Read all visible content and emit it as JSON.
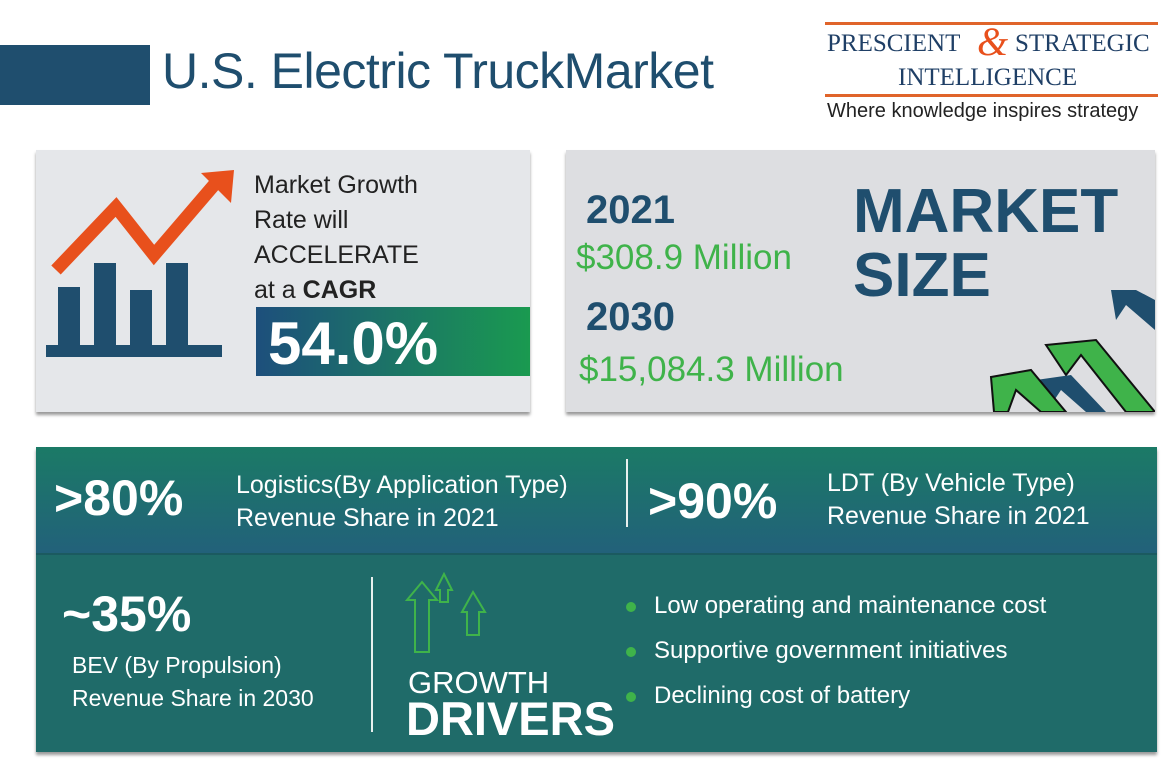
{
  "header": {
    "title": "U.S. Electric TruckMarket"
  },
  "logo": {
    "line1_left": "PRESCIENT",
    "ampersand": "&",
    "line1_right": "STRATEGIC",
    "line2": "INTELLIGENCE",
    "tagline": "Where knowledge inspires strategy"
  },
  "growth_card": {
    "line1": "Market Growth",
    "line2": "Rate will",
    "line3": "ACCELERATE",
    "line4_prefix": "at a ",
    "line4_bold": "CAGR",
    "cagr": "54.0%"
  },
  "market_size_card": {
    "year1": "2021",
    "value1": "$308.9 Million",
    "year2": "2030",
    "value2": "$15,084.3 Million",
    "heading1": "MARKET",
    "heading2": "SIZE"
  },
  "stats": [
    {
      "value": ">80%",
      "line1": "Logistics(By Application Type)",
      "line2": "Revenue Share in 2021"
    },
    {
      "value": ">90%",
      "line1": "LDT (By Vehicle Type)",
      "line2": "Revenue Share in 2021"
    },
    {
      "value": "~35%",
      "line1": "BEV (By Propulsion)",
      "line2": "Revenue Share in 2030"
    }
  ],
  "drivers": {
    "title1": "GROWTH",
    "title2": "DRIVERS",
    "items": [
      "Low operating and maintenance cost",
      "Supportive government initiatives",
      "Declining cost of battery"
    ]
  },
  "colors": {
    "navy": "#1f4e6e",
    "green": "#3fb34a",
    "orange": "#e8501c",
    "teal": "#1f6b69"
  }
}
